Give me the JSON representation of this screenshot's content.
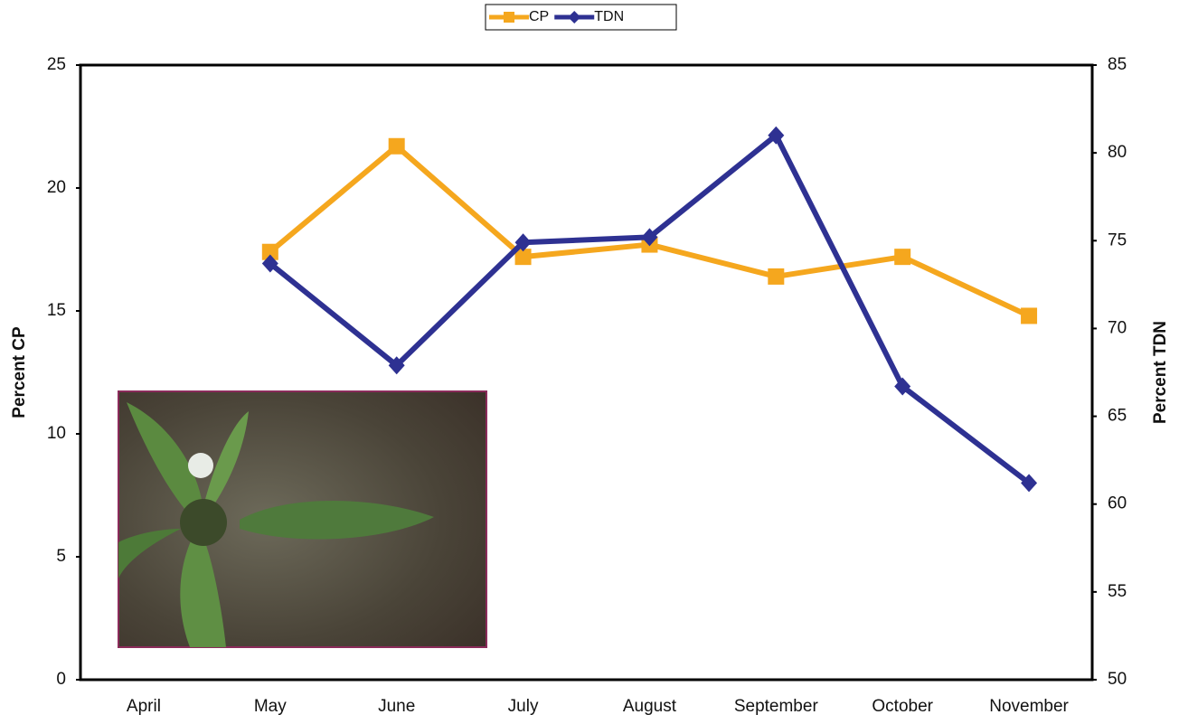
{
  "chart_data": {
    "type": "line",
    "categories": [
      "April",
      "May",
      "June",
      "July",
      "August",
      "September",
      "October",
      "November"
    ],
    "series": [
      {
        "name": "CP",
        "color": "#f5a71e",
        "marker": "square",
        "values": [
          null,
          17.4,
          21.7,
          17.2,
          17.7,
          16.4,
          17.2,
          14.8
        ]
      },
      {
        "name": "TDN",
        "color": "#2e3192",
        "marker": "diamond",
        "axis": "y2",
        "values": [
          null,
          73.7,
          67.9,
          74.9,
          75.2,
          81.0,
          66.7,
          61.2
        ]
      }
    ],
    "ylabel": "Percent CP",
    "y2label": "Percent TDN",
    "ylim": [
      0,
      25
    ],
    "yticks": [
      0,
      5,
      10,
      15,
      20,
      25
    ],
    "y2lim": [
      50,
      85
    ],
    "y2ticks": [
      50,
      55,
      60,
      65,
      70,
      75,
      80,
      85
    ],
    "grid": false,
    "legend": "top"
  }
}
